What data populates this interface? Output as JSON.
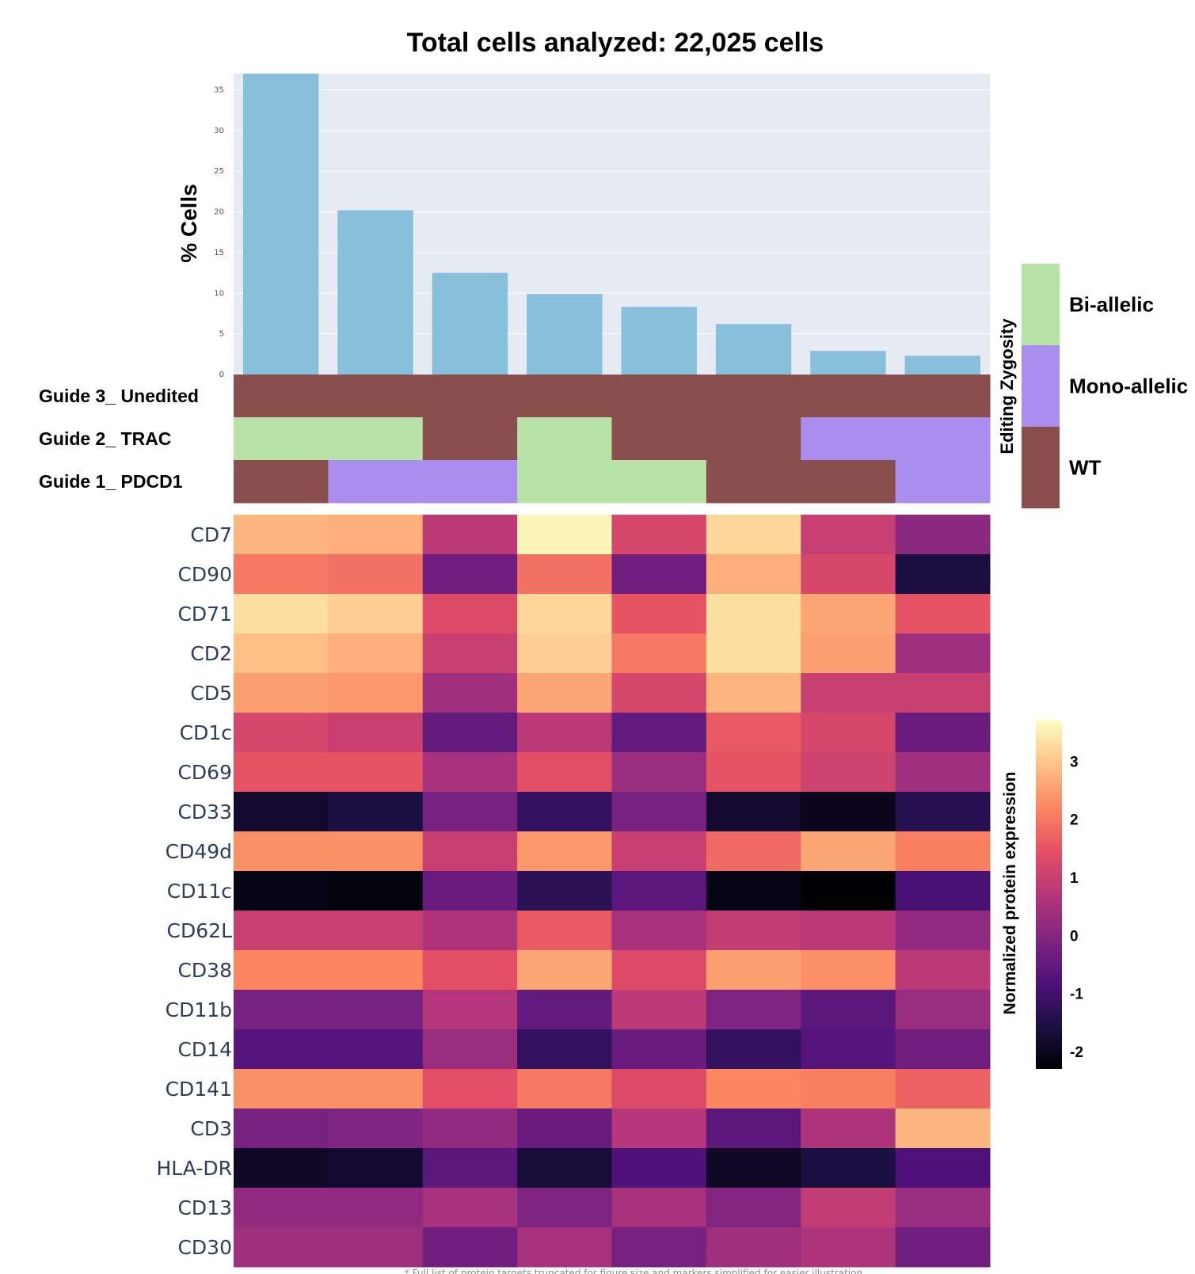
{
  "chart_data": {
    "type": "bar+heatmap",
    "title": "Total cells analyzed: 22,025 cells",
    "bar": {
      "ylabel": "% Cells",
      "ylim": [
        0,
        37
      ],
      "yticks": [
        0,
        5,
        10,
        15,
        20,
        25,
        30,
        35
      ],
      "grid": true,
      "color": "#88bfdb",
      "values": [
        37,
        20.2,
        12.5,
        9.9,
        8.3,
        6.2,
        2.9,
        2.3
      ]
    },
    "genotype": {
      "rows": [
        {
          "label": "Guide 3_ Unedited",
          "values": [
            "WT",
            "WT",
            "WT",
            "WT",
            "WT",
            "WT",
            "WT",
            "WT"
          ]
        },
        {
          "label": "Guide 2_ TRAC",
          "values": [
            "Bi-allelic",
            "Bi-allelic",
            "WT",
            "Bi-allelic",
            "WT",
            "WT",
            "Mono-allelic",
            "Mono-allelic"
          ]
        },
        {
          "label": "Guide 1_ PDCD1",
          "values": [
            "WT",
            "Mono-allelic",
            "Mono-allelic",
            "Bi-allelic",
            "Bi-allelic",
            "WT",
            "WT",
            "Mono-allelic"
          ]
        }
      ],
      "colors": {
        "Bi-allelic": "#b9e2a6",
        "Mono-allelic": "#a98eef",
        "WT": "#8a4f4c"
      }
    },
    "legend": {
      "title": "Editing Zygosity",
      "entries": [
        "Bi-allelic",
        "Mono-allelic",
        "WT"
      ],
      "placement": "right"
    },
    "heatmap": {
      "markers": [
        "CD7",
        "CD90",
        "CD71",
        "CD2",
        "CD5",
        "CD1c",
        "CD69",
        "CD33",
        "CD49d",
        "CD11c",
        "CD62L",
        "CD38",
        "CD11b",
        "CD14",
        "CD141",
        "CD3",
        "HLA-DR",
        "CD13",
        "CD30"
      ],
      "values": [
        [
          2.8,
          2.7,
          0.8,
          3.6,
          1.2,
          3.2,
          1.0,
          0.1
        ],
        [
          2.0,
          1.9,
          -0.3,
          1.9,
          -0.3,
          2.7,
          1.2,
          -1.6
        ],
        [
          3.3,
          3.1,
          1.3,
          3.2,
          1.5,
          3.3,
          2.6,
          1.5
        ],
        [
          2.9,
          2.7,
          1.0,
          3.1,
          2.0,
          3.3,
          2.5,
          0.4
        ],
        [
          2.5,
          2.4,
          0.4,
          2.6,
          1.2,
          2.8,
          1.0,
          1.0
        ],
        [
          1.2,
          1.0,
          -0.5,
          0.8,
          -0.5,
          1.6,
          1.2,
          -0.4
        ],
        [
          1.5,
          1.5,
          0.5,
          1.4,
          0.3,
          1.5,
          1.1,
          0.4
        ],
        [
          -1.8,
          -1.6,
          -0.2,
          -1.2,
          -0.2,
          -1.8,
          -2.0,
          -1.4
        ],
        [
          2.3,
          2.3,
          1.0,
          2.4,
          1.0,
          1.8,
          2.6,
          2.1
        ],
        [
          -2.1,
          -2.2,
          -0.4,
          -1.3,
          -0.6,
          -2.1,
          -2.3,
          -0.9
        ],
        [
          1.0,
          1.0,
          0.6,
          1.6,
          0.5,
          0.9,
          0.8,
          0.2
        ],
        [
          2.2,
          2.2,
          1.4,
          2.6,
          1.3,
          2.5,
          2.3,
          0.8
        ],
        [
          -0.2,
          -0.2,
          0.7,
          -0.5,
          0.8,
          -0.1,
          -0.6,
          0.3
        ],
        [
          -0.7,
          -0.7,
          0.3,
          -1.2,
          -0.4,
          -1.2,
          -0.7,
          -0.3
        ],
        [
          2.3,
          2.3,
          1.4,
          2.0,
          1.3,
          2.2,
          2.1,
          1.7
        ],
        [
          -0.2,
          -0.1,
          0.2,
          -0.4,
          0.7,
          -0.6,
          0.6,
          2.8
        ],
        [
          -1.9,
          -1.8,
          -0.6,
          -1.7,
          -0.8,
          -1.9,
          -1.6,
          -0.8
        ],
        [
          0.2,
          0.2,
          0.5,
          -0.1,
          0.5,
          0.0,
          0.9,
          0.3
        ],
        [
          0.4,
          0.4,
          -0.3,
          0.5,
          -0.2,
          0.4,
          0.6,
          -0.3
        ]
      ],
      "zlim": [
        -2.3,
        3.7
      ],
      "colorscale": "magma",
      "colorbar": {
        "title": "Normalized protein expression",
        "ticks": [
          -2,
          -1,
          0,
          1,
          2,
          3
        ],
        "placement": "right"
      }
    },
    "footnote": "* Full list of protein targets truncated for figure size and markers simplified for easier illustration"
  }
}
